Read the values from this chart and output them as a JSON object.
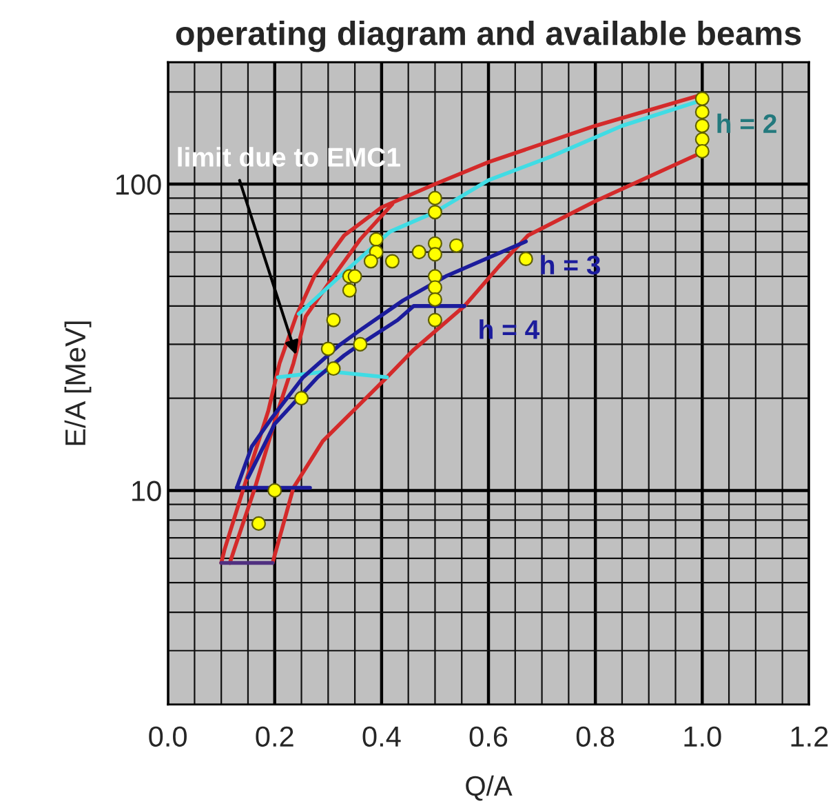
{
  "chart_data": {
    "type": "line",
    "title": "operating diagram and available beams",
    "xlabel": "Q/A",
    "ylabel": "E/A [MeV]",
    "xlim": [
      0,
      1.2
    ],
    "xticks": [
      {
        "value": 0,
        "label": "0.0"
      },
      0.2,
      0.4,
      0.6,
      0.8,
      {
        "value": 1,
        "label": "1.0"
      },
      1.2
    ],
    "ylim": [
      2,
      250
    ],
    "yticks": [
      10,
      100
    ],
    "log": "y",
    "grid": true,
    "annotations": [
      {
        "text": "limit due to EMC1",
        "x": 0.24,
        "y": 27.7
      }
    ],
    "series": [
      {
        "color": "#d42a2a",
        "x": [
          0.1,
          0.106,
          0.142,
          0.188,
          0.209,
          0.24,
          0.274,
          0.33,
          0.4,
          0.5,
          0.6,
          0.8,
          1.0
        ],
        "values": [
          5.8,
          6.4,
          10.2,
          18.2,
          26,
          37,
          50,
          68,
          84,
          100,
          118,
          155,
          196
        ]
      },
      {
        "color": "#d42a2a",
        "x": [
          0.116,
          0.124,
          0.163,
          0.206,
          0.235,
          0.258,
          0.31,
          0.36,
          0.42
        ],
        "values": [
          5.8,
          6.4,
          10.2,
          18.2,
          26,
          37,
          50,
          66,
          86
        ]
      },
      {
        "color": "#d42a2a",
        "x": [
          0.196,
          0.235,
          0.29,
          0.34,
          0.41,
          0.46,
          0.555,
          0.62,
          0.674,
          0.8,
          1.0
        ],
        "values": [
          5.8,
          10.2,
          14.5,
          17.7,
          23.4,
          28.8,
          40,
          54,
          68,
          88,
          127
        ]
      },
      {
        "color": "#503080",
        "x": [
          0.1,
          0.196
        ],
        "values": [
          5.8,
          5.8
        ]
      },
      {
        "color": "#1c1c9c",
        "x": [
          0.129,
          0.266
        ],
        "values": [
          10.2,
          10.2
        ]
      },
      {
        "name": "h = 2",
        "color": "#40dce4",
        "x": [
          0.245,
          0.33,
          0.416,
          0.5,
          0.6,
          0.717,
          0.85,
          1.0
        ],
        "values": [
          37.7,
          51.5,
          70,
          81,
          103,
          123,
          155,
          188
        ]
      },
      {
        "color": "#40dce4",
        "x": [
          0.206,
          0.3,
          0.41
        ],
        "values": [
          23.4,
          24.5,
          23.4
        ]
      },
      {
        "name": "h = 3",
        "color": "#1c1c9c",
        "x": [
          0.129,
          0.157,
          0.193,
          0.253,
          0.32,
          0.356,
          0.44,
          0.52,
          0.67
        ],
        "values": [
          10.2,
          13.9,
          17.1,
          23.4,
          29.7,
          33,
          41.7,
          50,
          65
        ]
      },
      {
        "name": "h = 4",
        "color": "#1c1c9c",
        "x": [
          0.15,
          0.2,
          0.28,
          0.33,
          0.356,
          0.43,
          0.46,
          0.555
        ],
        "values": [
          11,
          16.5,
          23.4,
          27.6,
          29.7,
          36,
          40,
          40
        ]
      },
      {
        "type": "scatter",
        "color": "#ffff00",
        "marker": "circle",
        "x": [
          1.0,
          1.0,
          1.0,
          1.0,
          1.0,
          0.5,
          0.5,
          0.39,
          0.39,
          0.38,
          0.42,
          0.47,
          0.5,
          0.54,
          0.5,
          0.34,
          0.35,
          0.34,
          0.5,
          0.5,
          0.5,
          0.5,
          0.67,
          0.31,
          0.3,
          0.36,
          0.31,
          0.25,
          0.2,
          0.17
        ],
        "values": [
          190,
          172,
          155,
          140,
          128,
          90,
          81,
          66,
          60,
          56,
          56,
          60,
          64,
          63,
          59,
          50,
          50,
          45,
          50,
          46,
          42,
          36,
          57,
          36,
          29,
          30,
          25,
          20,
          10,
          7.8
        ]
      }
    ]
  }
}
